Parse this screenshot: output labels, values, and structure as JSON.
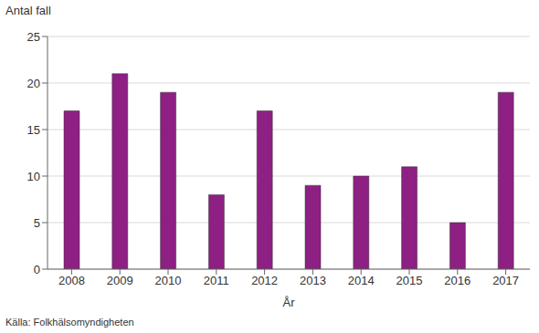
{
  "chart_data": {
    "type": "bar",
    "y_label": "Antal fall",
    "x_label": "År",
    "source": "Källa: Folkhälsomyndigheten",
    "categories": [
      "2008",
      "2009",
      "2010",
      "2011",
      "2012",
      "2013",
      "2014",
      "2015",
      "2016",
      "2017"
    ],
    "values": [
      17,
      21,
      19,
      8,
      17,
      9,
      10,
      11,
      5,
      19
    ],
    "color": "#8e1f83",
    "ylim": [
      0,
      25
    ],
    "yticks": [
      0,
      5,
      10,
      15,
      20,
      25
    ],
    "grid": true
  }
}
